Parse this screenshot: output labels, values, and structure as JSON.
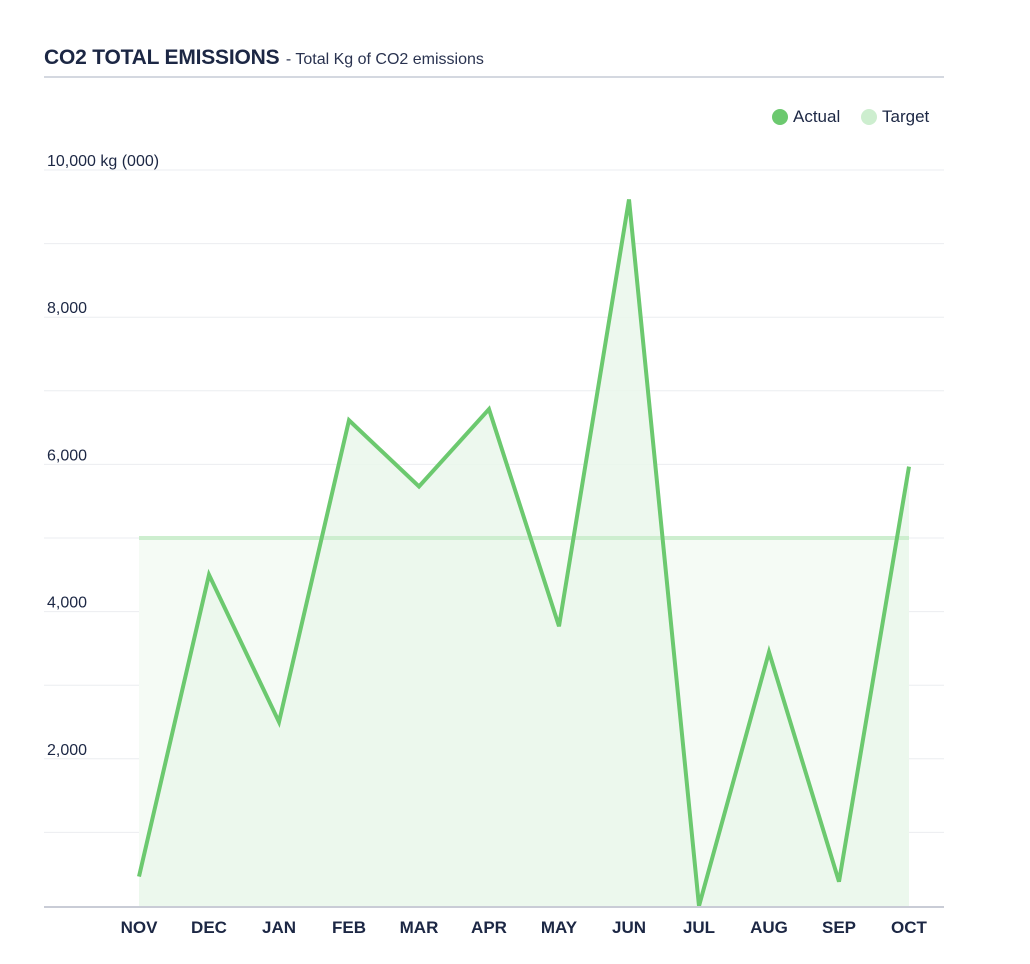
{
  "header": {
    "title": "CO2 TOTAL EMISSIONS",
    "subtitle": "- Total Kg of CO2 emissions"
  },
  "colors": {
    "actual": "#6cc96f",
    "target": "#cdeecf",
    "area": "#eaf7eb",
    "grid": "#ebedf0",
    "text": "#1c2744"
  },
  "chart_data": {
    "type": "area",
    "title": "CO2 TOTAL EMISSIONS",
    "subtitle": "- Total Kg of CO2 emissions",
    "ylabel": "kg (000)",
    "ylim": [
      0,
      10000
    ],
    "yticks": [
      {
        "value": 10000,
        "label": "10,000 kg (000)"
      },
      {
        "value": 8000,
        "label": "8,000"
      },
      {
        "value": 6000,
        "label": "6,000"
      },
      {
        "value": 4000,
        "label": "4,000"
      },
      {
        "value": 2000,
        "label": "2,000"
      }
    ],
    "minor_grid": [
      9000,
      7000,
      5000,
      3000,
      1000
    ],
    "categories": [
      "NOV",
      "DEC",
      "JAN",
      "FEB",
      "MAR",
      "APR",
      "MAY",
      "JUN",
      "JUL",
      "AUG",
      "SEP",
      "OCT"
    ],
    "series": [
      {
        "name": "Actual",
        "values": [
          400,
          4500,
          2500,
          6600,
          5700,
          6750,
          3800,
          9600,
          0,
          3450,
          330,
          5970
        ]
      },
      {
        "name": "Target",
        "values": [
          5000,
          5000,
          5000,
          5000,
          5000,
          5000,
          5000,
          5000,
          5000,
          5000,
          5000,
          5000
        ]
      }
    ],
    "legend": {
      "position": "top-right",
      "items": [
        "Actual",
        "Target"
      ]
    }
  }
}
